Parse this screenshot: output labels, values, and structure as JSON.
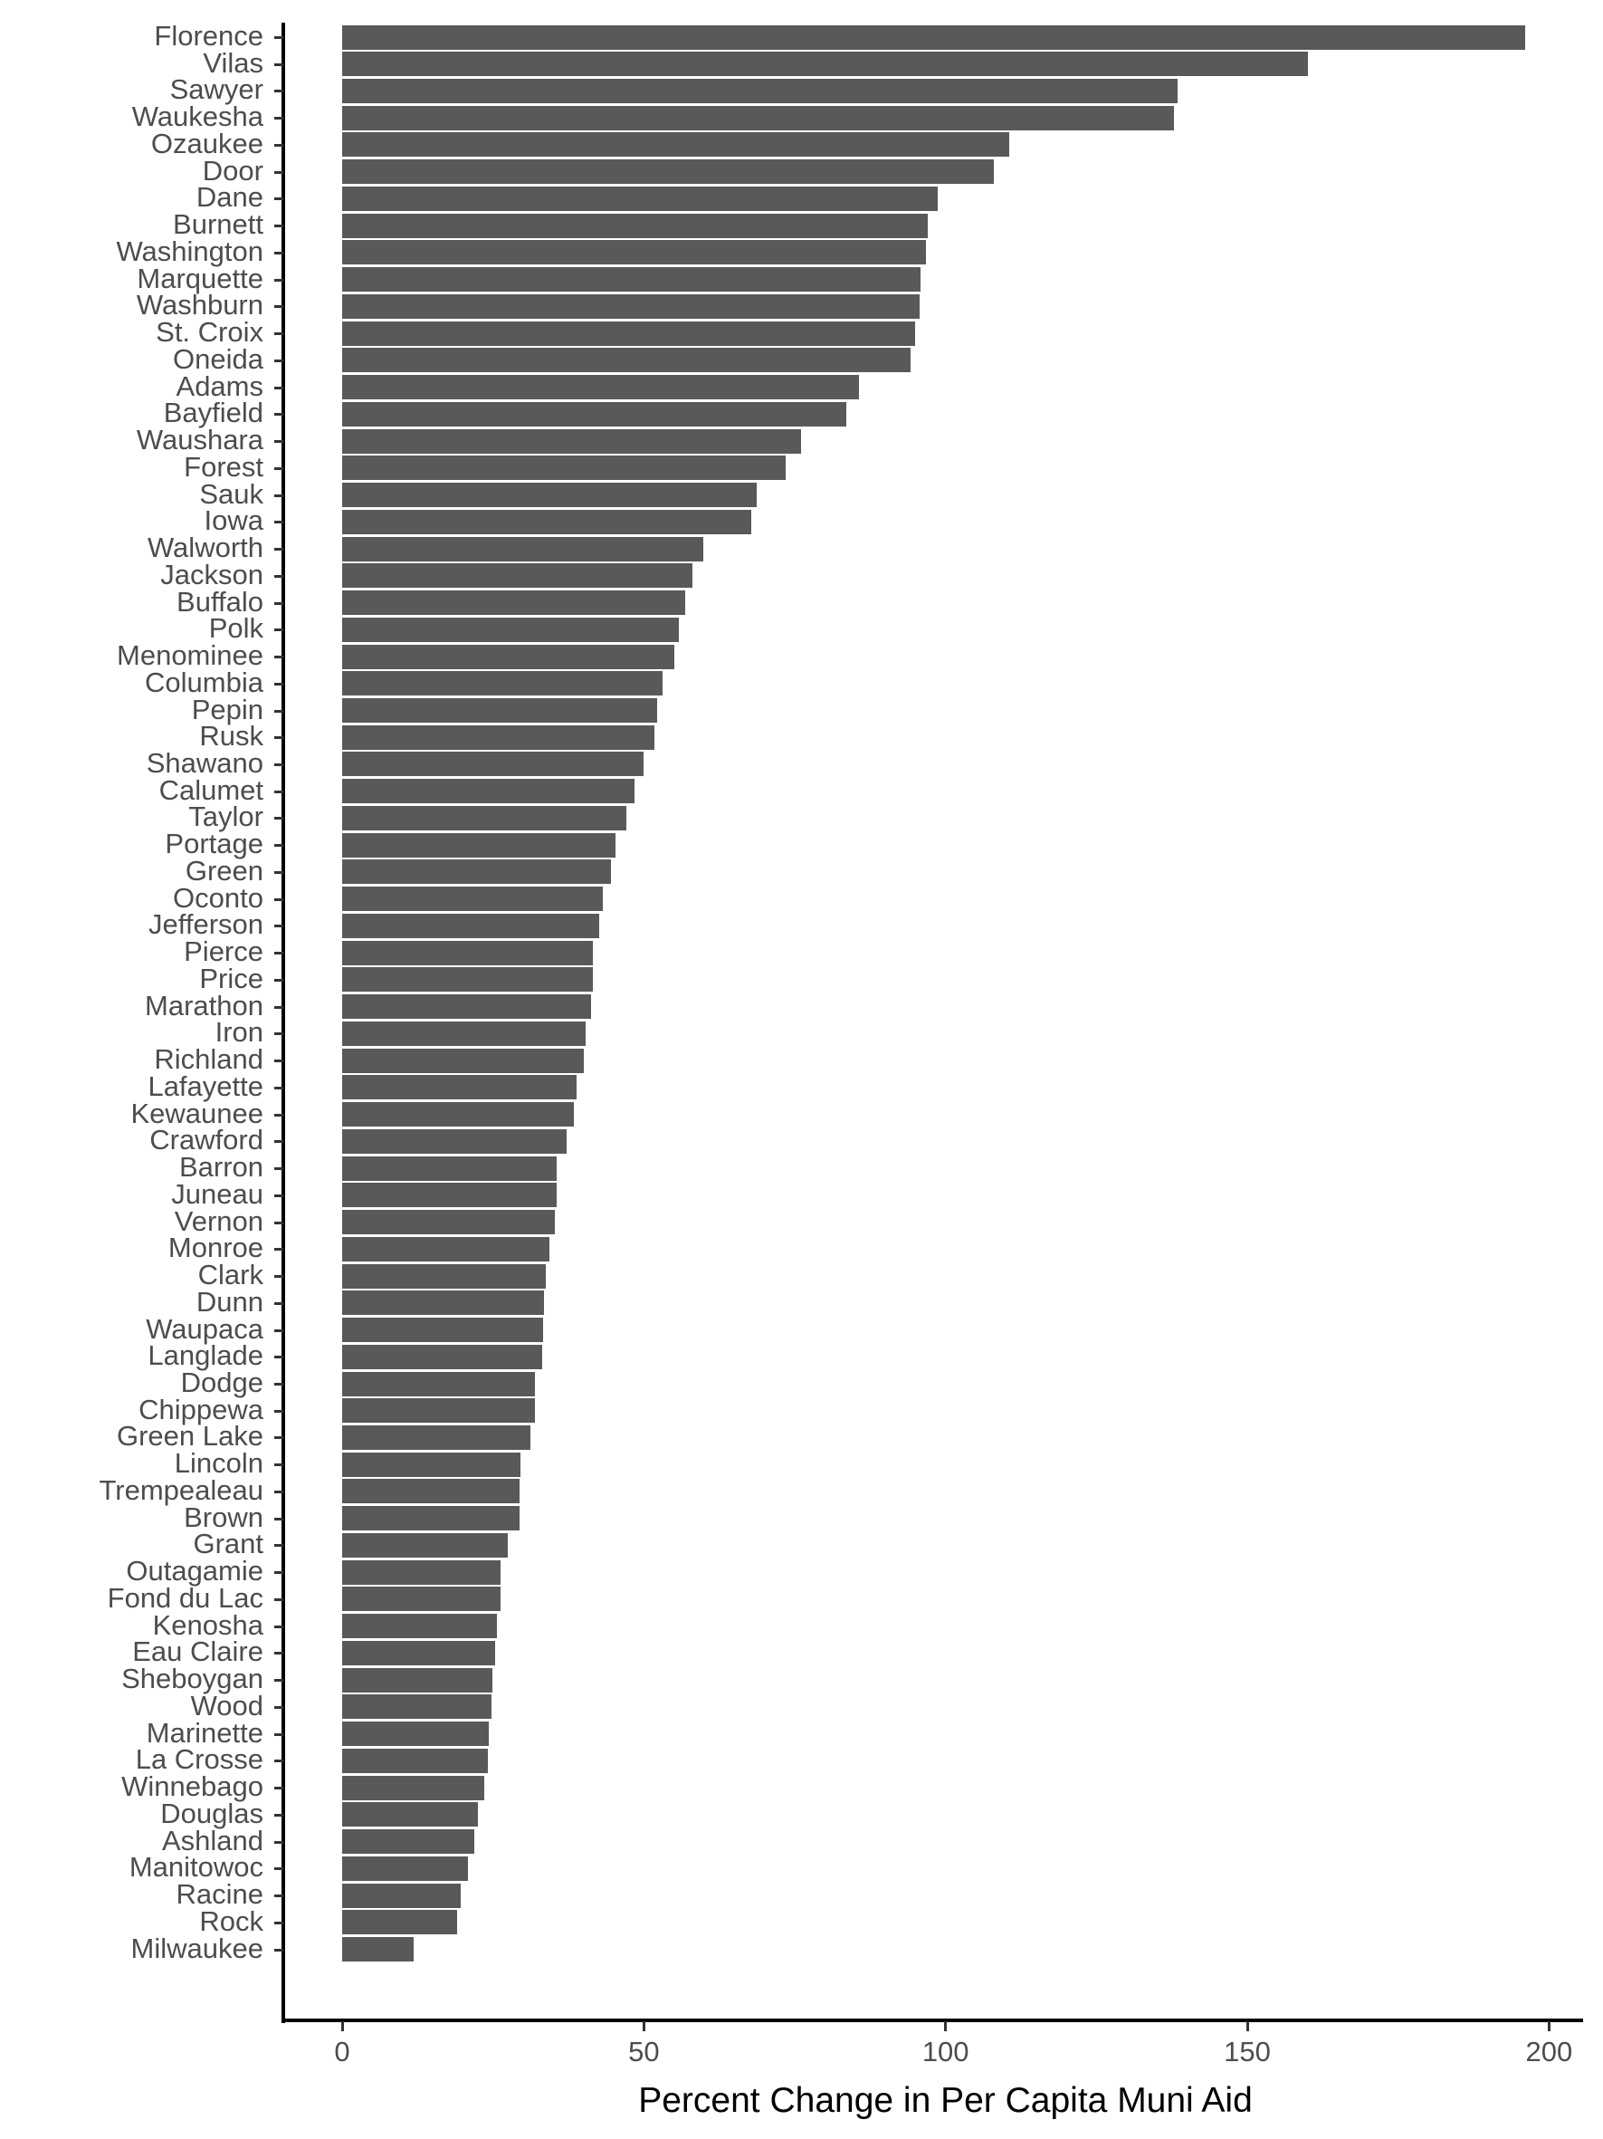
{
  "chart_data": {
    "type": "bar",
    "orientation": "horizontal",
    "title": "",
    "xlabel": "Percent Change in Per Capita Muni Aid",
    "ylabel": "",
    "xlim": [
      -10,
      206
    ],
    "x_ticks": [
      0,
      50,
      100,
      150,
      200
    ],
    "grid": false,
    "legend": null,
    "bar_color": "#595959",
    "categories": [
      "Florence",
      "Vilas",
      "Sawyer",
      "Waukesha",
      "Ozaukee",
      "Door",
      "Dane",
      "Burnett",
      "Washington",
      "Marquette",
      "Washburn",
      "St. Croix",
      "Oneida",
      "Adams",
      "Bayfield",
      "Waushara",
      "Forest",
      "Sauk",
      "Iowa",
      "Walworth",
      "Jackson",
      "Buffalo",
      "Polk",
      "Menominee",
      "Columbia",
      "Pepin",
      "Rusk",
      "Shawano",
      "Calumet",
      "Taylor",
      "Portage",
      "Green",
      "Oconto",
      "Jefferson",
      "Pierce",
      "Price",
      "Marathon",
      "Iron",
      "Richland",
      "Lafayette",
      "Kewaunee",
      "Crawford",
      "Barron",
      "Juneau",
      "Vernon",
      "Monroe",
      "Clark",
      "Dunn",
      "Waupaca",
      "Langlade",
      "Dodge",
      "Chippewa",
      "Green Lake",
      "Lincoln",
      "Trempealeau",
      "Brown",
      "Grant",
      "Outagamie",
      "Fond du Lac",
      "Kenosha",
      "Eau Claire",
      "Sheboygan",
      "Wood",
      "Marinette",
      "La Crosse",
      "Winnebago",
      "Douglas",
      "Ashland",
      "Manitowoc",
      "Racine",
      "Rock",
      "Milwaukee"
    ],
    "values": [
      196.0,
      160.0,
      138.5,
      137.9,
      110.5,
      108.0,
      98.7,
      97.1,
      96.7,
      95.9,
      95.7,
      95.0,
      94.2,
      85.7,
      83.5,
      76.1,
      73.5,
      68.7,
      67.8,
      59.8,
      58.0,
      56.8,
      55.8,
      55.0,
      53.1,
      52.2,
      51.7,
      49.9,
      48.5,
      47.1,
      45.3,
      44.5,
      43.2,
      42.6,
      41.6,
      41.5,
      41.3,
      40.3,
      40.0,
      38.9,
      38.4,
      37.2,
      35.5,
      35.5,
      35.2,
      34.4,
      33.8,
      33.5,
      33.3,
      33.1,
      32.0,
      32.0,
      31.2,
      29.5,
      29.4,
      29.4,
      27.5,
      26.3,
      26.2,
      25.6,
      25.3,
      24.9,
      24.7,
      24.3,
      24.1,
      23.5,
      22.5,
      21.9,
      20.8,
      19.7,
      19.1,
      11.9
    ]
  }
}
